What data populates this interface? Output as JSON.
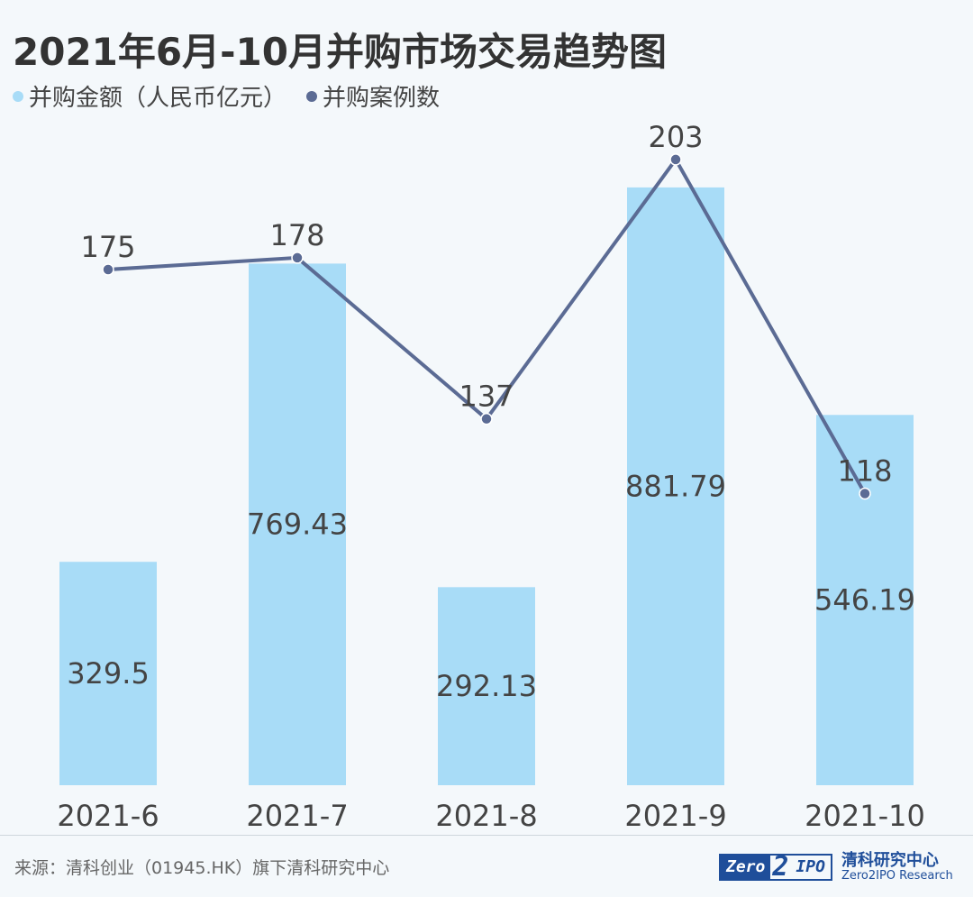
{
  "title": "2021年6月-10月并购市场交易趋势图",
  "legend": [
    {
      "label": "并购金额（人民币亿元）",
      "color": "#a8dcf7"
    },
    {
      "label": "并购案例数",
      "color": "#5b6b94"
    }
  ],
  "chart_data": {
    "type": "bar",
    "categories": [
      "2021-6",
      "2021-7",
      "2021-8",
      "2021-9",
      "2021-10"
    ],
    "series": [
      {
        "name": "并购金额（人民币亿元）",
        "type": "bar",
        "values": [
          329.5,
          769.43,
          292.13,
          881.79,
          546.19
        ],
        "labels": [
          "329.5",
          "769.43",
          "292.13",
          "881.79",
          "546.19"
        ],
        "color": "#a8dcf7"
      },
      {
        "name": "并购案例数",
        "type": "line",
        "values": [
          175,
          178,
          137,
          203,
          118
        ],
        "labels": [
          "175",
          "178",
          "137",
          "203",
          "118"
        ],
        "color": "#5b6b94"
      }
    ],
    "bar_ylim": [
      0,
      1000
    ],
    "line_ylim": [
      0,
      240
    ],
    "grid": false
  },
  "footer": {
    "source": "来源：清科创业（01945.HK）旗下清科研究中心",
    "logo_left": "Zero",
    "logo_mid": "2",
    "logo_right": "IPO",
    "logo_cn": "清科研究中心",
    "logo_en": "Zero2IPO Research"
  }
}
